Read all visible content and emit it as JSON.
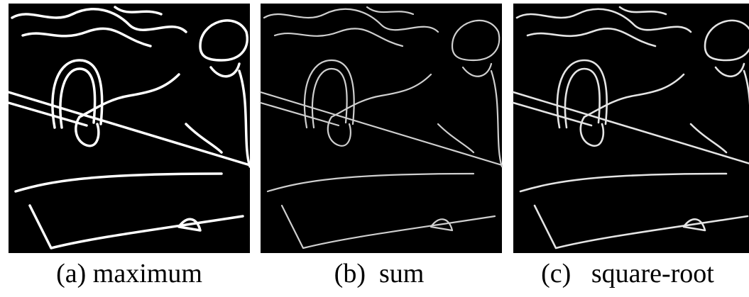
{
  "figure": {
    "panels": [
      {
        "caption": "(a) maximum"
      },
      {
        "caption": "(b)  sum"
      },
      {
        "caption": "(c)   square-root"
      }
    ]
  }
}
